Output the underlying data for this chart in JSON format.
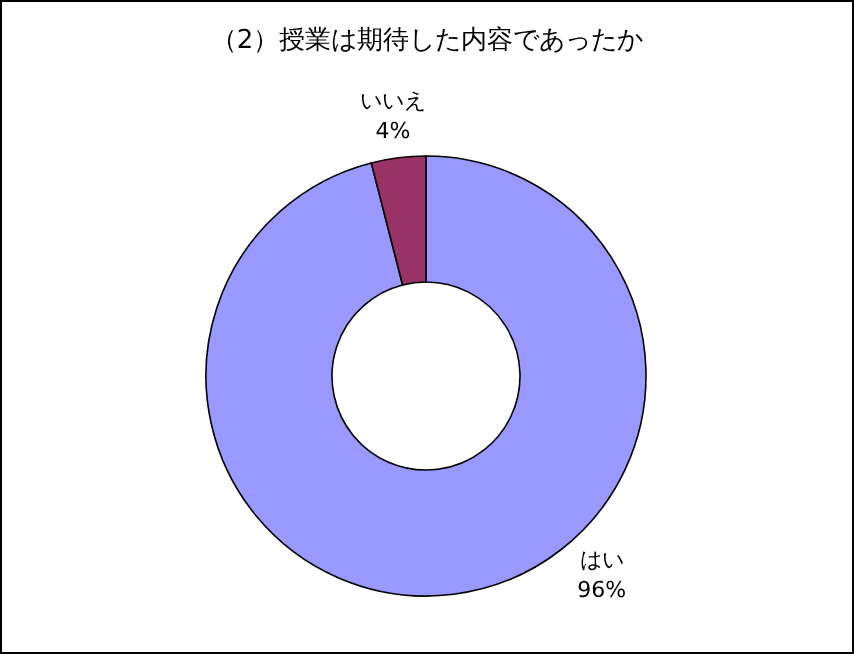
{
  "chart_data": {
    "type": "donut",
    "title": "（2）授業は期待した内容であったか",
    "categories": [
      "はい",
      "いいえ"
    ],
    "values": [
      96,
      4
    ],
    "colors": [
      "#9999ff",
      "#993366"
    ],
    "value_labels": [
      "96%",
      "4%"
    ]
  }
}
